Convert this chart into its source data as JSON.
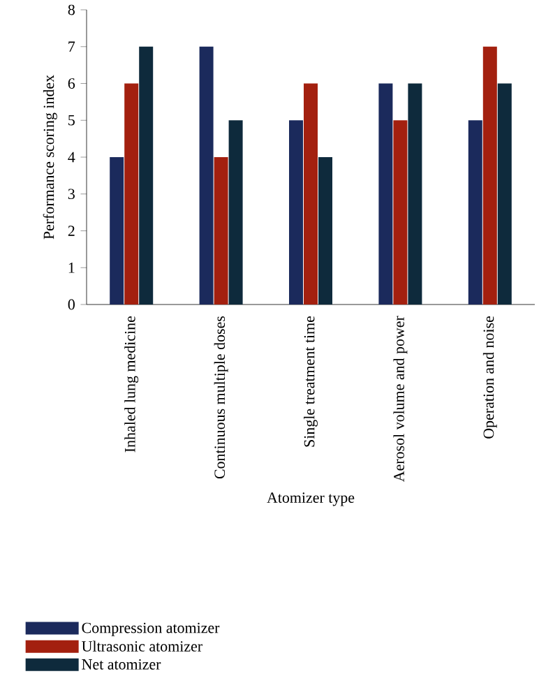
{
  "chart_data": {
    "type": "bar",
    "xlabel": "Atomizer type",
    "ylabel": "Performance scoring index",
    "categories": [
      "Inhaled lung medicine",
      "Continuous multiple doses",
      "Single treatment time",
      "Aerosol volume and power",
      "Operation and noise"
    ],
    "series": [
      {
        "name": "Compression atomizer",
        "color": "#1b2a5c",
        "values": [
          4,
          7,
          5,
          6,
          5
        ]
      },
      {
        "name": "Ultrasonic atomizer",
        "color": "#a3200f",
        "values": [
          6,
          4,
          6,
          5,
          7
        ]
      },
      {
        "name": "Net atomizer",
        "color": "#0e2a3c",
        "values": [
          7,
          5,
          4,
          6,
          6
        ]
      }
    ],
    "ylim": [
      0,
      8
    ],
    "yticks": [
      0,
      1,
      2,
      3,
      4,
      5,
      6,
      7,
      8
    ],
    "legend": "bottom"
  }
}
